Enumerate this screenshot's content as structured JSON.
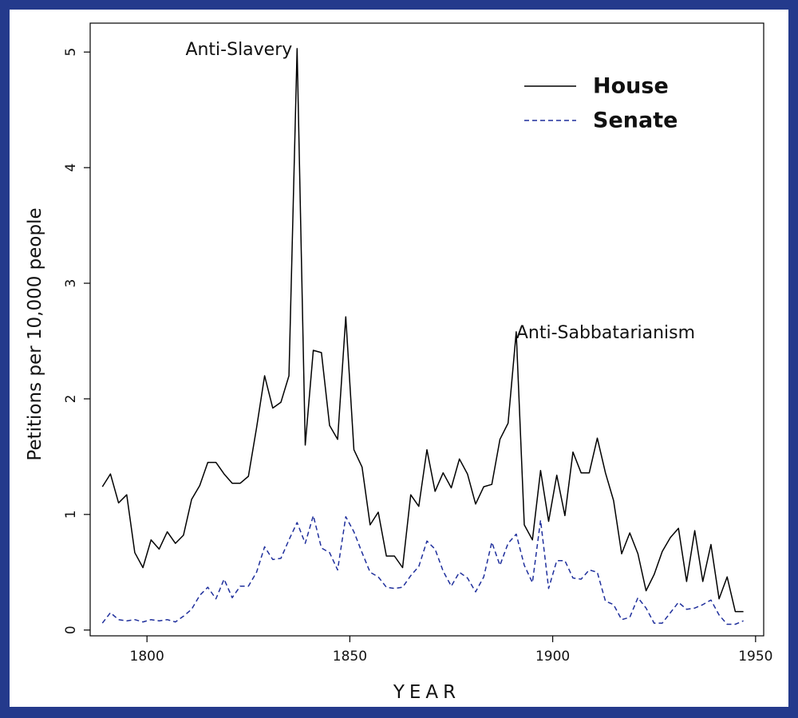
{
  "chart_data": {
    "type": "line",
    "xlabel": "YEAR",
    "ylabel": "Petitions per 10,000 people",
    "xlim": [
      1786,
      1952
    ],
    "ylim": [
      -0.05,
      5.25
    ],
    "x_ticks": [
      1800,
      1850,
      1900,
      1950
    ],
    "y_ticks": [
      0,
      1,
      2,
      3,
      4,
      5
    ],
    "grid": false,
    "legend_position": "top-right",
    "series": [
      {
        "name": "House",
        "style": "solid",
        "color": "#000000",
        "points": [
          [
            1789,
            1.24
          ],
          [
            1791,
            1.35
          ],
          [
            1793,
            1.1
          ],
          [
            1795,
            1.17
          ],
          [
            1797,
            0.67
          ],
          [
            1799,
            0.54
          ],
          [
            1801,
            0.78
          ],
          [
            1803,
            0.7
          ],
          [
            1805,
            0.85
          ],
          [
            1807,
            0.75
          ],
          [
            1809,
            0.82
          ],
          [
            1811,
            1.13
          ],
          [
            1813,
            1.25
          ],
          [
            1815,
            1.45
          ],
          [
            1817,
            1.45
          ],
          [
            1819,
            1.35
          ],
          [
            1821,
            1.27
          ],
          [
            1823,
            1.27
          ],
          [
            1825,
            1.33
          ],
          [
            1827,
            1.75
          ],
          [
            1829,
            2.2
          ],
          [
            1831,
            1.92
          ],
          [
            1833,
            1.97
          ],
          [
            1835,
            2.2
          ],
          [
            1837,
            5.03
          ],
          [
            1839,
            1.6
          ],
          [
            1841,
            2.42
          ],
          [
            1843,
            2.4
          ],
          [
            1845,
            1.77
          ],
          [
            1847,
            1.65
          ],
          [
            1849,
            2.71
          ],
          [
            1851,
            1.56
          ],
          [
            1853,
            1.41
          ],
          [
            1855,
            0.91
          ],
          [
            1857,
            1.02
          ],
          [
            1859,
            0.64
          ],
          [
            1861,
            0.64
          ],
          [
            1863,
            0.54
          ],
          [
            1865,
            1.17
          ],
          [
            1867,
            1.07
          ],
          [
            1869,
            1.56
          ],
          [
            1871,
            1.2
          ],
          [
            1873,
            1.36
          ],
          [
            1875,
            1.23
          ],
          [
            1877,
            1.48
          ],
          [
            1879,
            1.35
          ],
          [
            1881,
            1.09
          ],
          [
            1883,
            1.24
          ],
          [
            1885,
            1.26
          ],
          [
            1887,
            1.65
          ],
          [
            1889,
            1.79
          ],
          [
            1891,
            2.58
          ],
          [
            1893,
            0.91
          ],
          [
            1895,
            0.78
          ],
          [
            1897,
            1.38
          ],
          [
            1899,
            0.94
          ],
          [
            1901,
            1.34
          ],
          [
            1903,
            0.99
          ],
          [
            1905,
            1.54
          ],
          [
            1907,
            1.36
          ],
          [
            1909,
            1.36
          ],
          [
            1911,
            1.66
          ],
          [
            1913,
            1.36
          ],
          [
            1915,
            1.12
          ],
          [
            1917,
            0.66
          ],
          [
            1919,
            0.84
          ],
          [
            1921,
            0.66
          ],
          [
            1923,
            0.34
          ],
          [
            1925,
            0.48
          ],
          [
            1927,
            0.68
          ],
          [
            1929,
            0.8
          ],
          [
            1931,
            0.88
          ],
          [
            1933,
            0.42
          ],
          [
            1935,
            0.86
          ],
          [
            1937,
            0.42
          ],
          [
            1939,
            0.74
          ],
          [
            1941,
            0.27
          ],
          [
            1943,
            0.46
          ],
          [
            1945,
            0.16
          ],
          [
            1947,
            0.16
          ]
        ]
      },
      {
        "name": "Senate",
        "style": "dashed",
        "color": "#1f2f9c",
        "points": [
          [
            1789,
            0.06
          ],
          [
            1791,
            0.15
          ],
          [
            1793,
            0.09
          ],
          [
            1795,
            0.08
          ],
          [
            1797,
            0.09
          ],
          [
            1799,
            0.07
          ],
          [
            1801,
            0.09
          ],
          [
            1803,
            0.08
          ],
          [
            1805,
            0.09
          ],
          [
            1807,
            0.07
          ],
          [
            1809,
            0.12
          ],
          [
            1811,
            0.18
          ],
          [
            1813,
            0.3
          ],
          [
            1815,
            0.37
          ],
          [
            1817,
            0.27
          ],
          [
            1819,
            0.44
          ],
          [
            1821,
            0.28
          ],
          [
            1823,
            0.38
          ],
          [
            1825,
            0.38
          ],
          [
            1827,
            0.5
          ],
          [
            1829,
            0.72
          ],
          [
            1831,
            0.61
          ],
          [
            1833,
            0.62
          ],
          [
            1835,
            0.78
          ],
          [
            1837,
            0.93
          ],
          [
            1839,
            0.75
          ],
          [
            1841,
            0.99
          ],
          [
            1843,
            0.71
          ],
          [
            1845,
            0.67
          ],
          [
            1847,
            0.52
          ],
          [
            1849,
            0.98
          ],
          [
            1851,
            0.85
          ],
          [
            1853,
            0.67
          ],
          [
            1855,
            0.5
          ],
          [
            1857,
            0.46
          ],
          [
            1859,
            0.37
          ],
          [
            1861,
            0.36
          ],
          [
            1863,
            0.37
          ],
          [
            1865,
            0.47
          ],
          [
            1867,
            0.55
          ],
          [
            1869,
            0.77
          ],
          [
            1871,
            0.7
          ],
          [
            1873,
            0.51
          ],
          [
            1875,
            0.38
          ],
          [
            1877,
            0.5
          ],
          [
            1879,
            0.45
          ],
          [
            1881,
            0.33
          ],
          [
            1883,
            0.46
          ],
          [
            1885,
            0.76
          ],
          [
            1887,
            0.56
          ],
          [
            1889,
            0.75
          ],
          [
            1891,
            0.83
          ],
          [
            1893,
            0.56
          ],
          [
            1895,
            0.41
          ],
          [
            1897,
            0.95
          ],
          [
            1899,
            0.36
          ],
          [
            1901,
            0.6
          ],
          [
            1903,
            0.6
          ],
          [
            1905,
            0.45
          ],
          [
            1907,
            0.44
          ],
          [
            1909,
            0.52
          ],
          [
            1911,
            0.5
          ],
          [
            1913,
            0.25
          ],
          [
            1915,
            0.22
          ],
          [
            1917,
            0.09
          ],
          [
            1919,
            0.11
          ],
          [
            1921,
            0.28
          ],
          [
            1923,
            0.19
          ],
          [
            1925,
            0.06
          ],
          [
            1927,
            0.06
          ],
          [
            1929,
            0.15
          ],
          [
            1931,
            0.24
          ],
          [
            1933,
            0.18
          ],
          [
            1935,
            0.19
          ],
          [
            1937,
            0.22
          ],
          [
            1939,
            0.26
          ],
          [
            1941,
            0.13
          ],
          [
            1943,
            0.05
          ],
          [
            1945,
            0.05
          ],
          [
            1947,
            0.08
          ]
        ]
      }
    ],
    "annotations": [
      {
        "text": "Anti-Slavery",
        "x": 1837,
        "y": 5.03,
        "anchor": "end"
      },
      {
        "text": "Anti-Sabbatarianism",
        "x": 1891,
        "y": 2.58,
        "anchor": "start"
      }
    ]
  }
}
